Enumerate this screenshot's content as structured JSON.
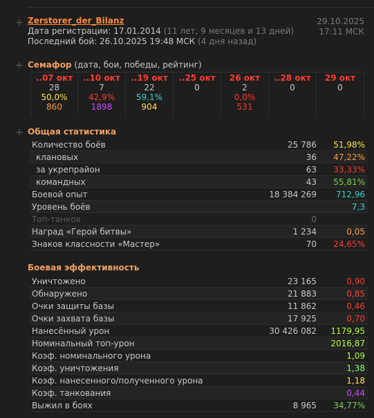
{
  "player": {
    "name": "Zerstorer_der_Bilanz",
    "reg_label": "Дата регистрации:",
    "reg_date": "17.01.2014",
    "reg_age": "(11 лет, 9 месяцев и 13 дней)",
    "last_label": "Последний бой:",
    "last_date": "26.10.2025 19:48 МСК",
    "last_ago": "(4 дня назад)",
    "now_date": "29.10.2025",
    "now_time": "17:11 МСК"
  },
  "semaphore": {
    "title": "Семафор",
    "subtitle": "(дата, бои, победы, рейтинг)",
    "days": [
      {
        "date": "..07 окт",
        "battles": "28",
        "wins": "50,0%",
        "rating": "860",
        "date_color": "#ff3b2f",
        "wins_color": "#ffe34a",
        "rating_color": "#ff9b3a"
      },
      {
        "date": "..10 окт",
        "battles": "7",
        "wins": "42,9%",
        "rating": "1898",
        "date_color": "#ff3b2f",
        "wins_color": "#ff3b2f",
        "rating_color": "#c54cff"
      },
      {
        "date": "..19 окт",
        "battles": "22",
        "wins": "59,1%",
        "rating": "904",
        "date_color": "#ff3b2f",
        "wins_color": "#39d0c8",
        "rating_color": "#ffe34a"
      },
      {
        "date": "..25 окт",
        "battles": "0",
        "wins": "",
        "rating": "",
        "date_color": "#ff3b2f",
        "wins_color": "#ff3b2f",
        "rating_color": "#ff3b2f"
      },
      {
        "date": "26 окт",
        "battles": "2",
        "wins": "0,0%",
        "rating": "531",
        "date_color": "#ff3b2f",
        "wins_color": "#ff3b2f",
        "rating_color": "#ff3b2f"
      },
      {
        "date": "..28 окт",
        "battles": "0",
        "wins": "",
        "rating": "",
        "date_color": "#ff3b2f",
        "wins_color": "#ff3b2f",
        "rating_color": "#ff3b2f"
      },
      {
        "date": "29 окт",
        "battles": "0",
        "wins": "",
        "rating": "",
        "date_color": "#ff3b2f",
        "wins_color": "#ff3b2f",
        "rating_color": "#ff3b2f"
      }
    ]
  },
  "general": {
    "title": "Общая статистика",
    "rows": [
      {
        "label": "Количество боёв",
        "value": "25 786",
        "pct": "51,98%",
        "pct_color": "#ffe34a",
        "indent": false,
        "disabled": false
      },
      {
        "label": "клановых",
        "value": "36",
        "pct": "47,22%",
        "pct_color": "#ff9b3a",
        "indent": true,
        "disabled": false
      },
      {
        "label": "за укрепрайон",
        "value": "63",
        "pct": "33,33%",
        "pct_color": "#ff3b2f",
        "indent": true,
        "disabled": false
      },
      {
        "label": "командных",
        "value": "43",
        "pct": "55,81%",
        "pct_color": "#7ad14a",
        "indent": true,
        "disabled": false
      },
      {
        "label": "Боевой опыт",
        "value": "18 384 269",
        "pct": "712,96",
        "pct_color": "#39d0c8",
        "indent": false,
        "disabled": false
      },
      {
        "label": "Уровень боёв",
        "value": "",
        "pct": "7,3",
        "pct_color": "#39d0c8",
        "indent": false,
        "disabled": false
      },
      {
        "label": "Топ-танков",
        "value": "0",
        "pct": "",
        "pct_color": "#c8c8c8",
        "indent": false,
        "disabled": true
      },
      {
        "label": "Наград «Герой битвы»",
        "value": "1 234",
        "pct": "0,05",
        "pct_color": "#ff9b3a",
        "indent": false,
        "disabled": false
      },
      {
        "label": "Знаков классности «Мастер»",
        "value": "70",
        "pct": "24,65%",
        "pct_color": "#ff3b2f",
        "indent": false,
        "disabled": false
      }
    ]
  },
  "efficiency": {
    "title": "Боевая эффективность",
    "rows": [
      {
        "label": "Уничтожено",
        "value": "23 165",
        "pct": "0,90",
        "pct_color": "#ff3b2f"
      },
      {
        "label": "Обнаружено",
        "value": "21 883",
        "pct": "0,85",
        "pct_color": "#ff3b2f"
      },
      {
        "label": "Очки защиты базы",
        "value": "11 862",
        "pct": "0,46",
        "pct_color": "#ff3b2f"
      },
      {
        "label": "Очки захвата базы",
        "value": "17 925",
        "pct": "0,70",
        "pct_color": "#ff3b2f"
      },
      {
        "label": "Нанесённый урон",
        "value": "30 426 082",
        "pct": "1179,95",
        "pct_color": "#b4ff3a"
      },
      {
        "label": "Номинальный топ-урон",
        "value": "",
        "pct": "2016,87",
        "pct_color": "#b4ff3a"
      },
      {
        "label": "Коэф. номинального урона",
        "value": "",
        "pct": "1,09",
        "pct_color": "#b4ff3a"
      },
      {
        "label": "Коэф. уничтожения",
        "value": "",
        "pct": "1,38",
        "pct_color": "#8cff6a"
      },
      {
        "label": "Коэф. нанесенного/полученного урона",
        "value": "",
        "pct": "1,18",
        "pct_color": "#ffe34a"
      },
      {
        "label": "Коэф. танкования",
        "value": "",
        "pct": "0,44",
        "pct_color": "#c54cff"
      },
      {
        "label": "Выжил в боях",
        "value": "8 965",
        "pct": "34,77%",
        "pct_color": "#7ad14a"
      }
    ]
  }
}
